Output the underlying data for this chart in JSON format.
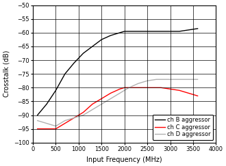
{
  "title": "",
  "xlabel": "Input Frequency (MHz)",
  "ylabel": "Crosstalk (dB)",
  "xlim": [
    0,
    4000
  ],
  "ylim": [
    -100,
    -50
  ],
  "xticks": [
    0,
    500,
    1000,
    1500,
    2000,
    2500,
    3000,
    3500,
    4000
  ],
  "yticks": [
    -100,
    -95,
    -90,
    -85,
    -80,
    -75,
    -70,
    -65,
    -60,
    -55,
    -50
  ],
  "ch_B": {
    "x": [
      100,
      300,
      500,
      700,
      900,
      1100,
      1300,
      1500,
      1700,
      1900,
      2000,
      2200,
      2400,
      2500,
      2600,
      2800,
      3000,
      3200,
      3400,
      3600
    ],
    "y": [
      -90,
      -86,
      -81,
      -75,
      -71,
      -67.5,
      -65,
      -62.5,
      -61,
      -60,
      -59.5,
      -59.5,
      -59.5,
      -59.5,
      -59.5,
      -59.5,
      -59.5,
      -59.5,
      -59,
      -58.5
    ],
    "color": "#000000",
    "label": "ch B aggressor"
  },
  "ch_C": {
    "x": [
      100,
      300,
      500,
      700,
      900,
      1100,
      1300,
      1500,
      1700,
      1900,
      2000,
      2200,
      2400,
      2600,
      2800,
      3000,
      3200,
      3400,
      3600
    ],
    "y": [
      -95,
      -95,
      -95,
      -93,
      -91,
      -89,
      -86,
      -84,
      -82,
      -80.5,
      -80,
      -80,
      -80,
      -80,
      -80,
      -80.5,
      -81,
      -82,
      -83
    ],
    "color": "#ff0000",
    "label": "ch C aggressor"
  },
  "ch_D": {
    "x": [
      100,
      300,
      500,
      700,
      900,
      1100,
      1300,
      1500,
      1700,
      1900,
      2100,
      2300,
      2500,
      2700,
      2900,
      3000,
      3200,
      3400,
      3600
    ],
    "y": [
      -92,
      -93,
      -94,
      -92,
      -91,
      -90,
      -88,
      -86,
      -84,
      -82,
      -80,
      -78.5,
      -77.5,
      -77,
      -77,
      -77,
      -77,
      -77,
      -77
    ],
    "color": "#b0b0b0",
    "label": "ch D aggressor"
  },
  "legend_loc": "lower right",
  "grid_color": "#000000",
  "background_color": "#ffffff",
  "linewidth": 1.0,
  "fontsize": 7
}
